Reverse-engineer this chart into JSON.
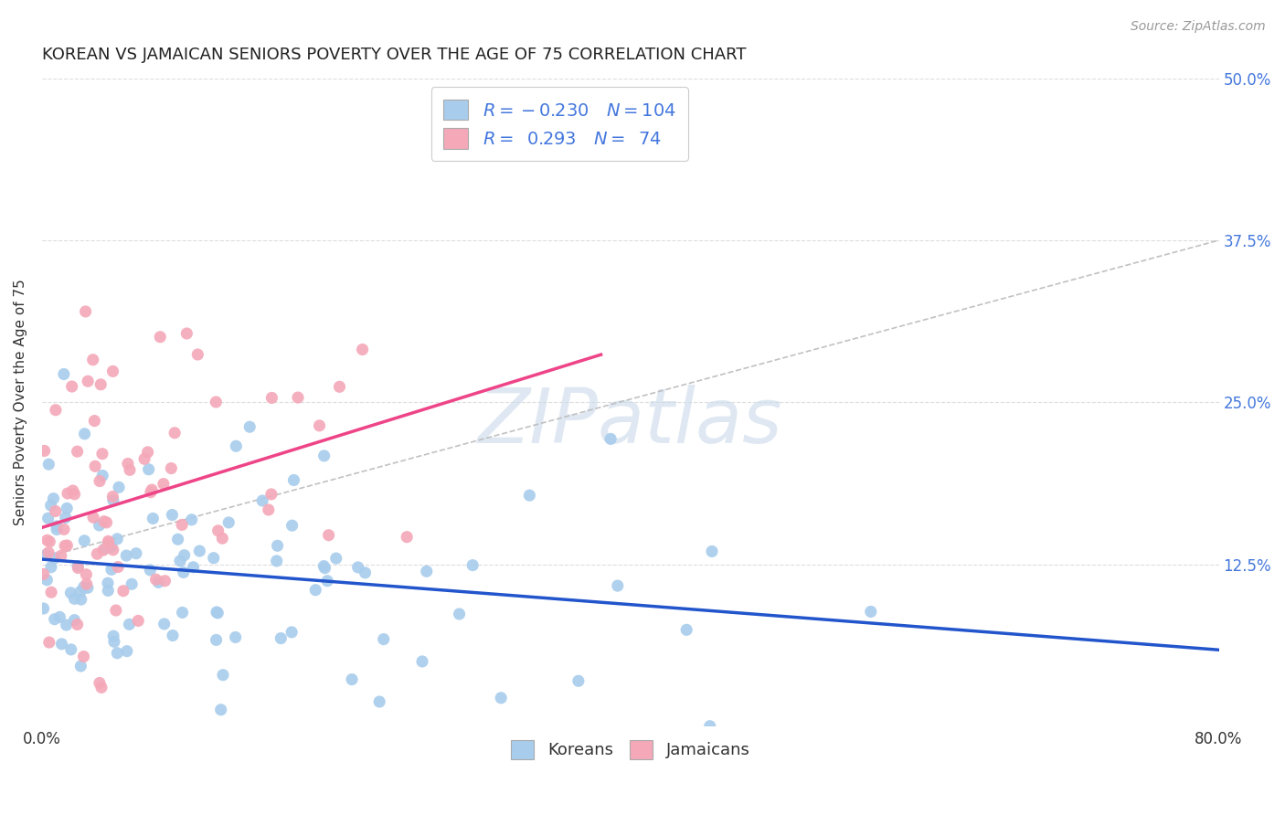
{
  "title": "KOREAN VS JAMAICAN SENIORS POVERTY OVER THE AGE OF 75 CORRELATION CHART",
  "source": "Source: ZipAtlas.com",
  "ylabel": "Seniors Poverty Over the Age of 75",
  "xlim": [
    0.0,
    0.8
  ],
  "ylim": [
    0.0,
    0.5
  ],
  "xticks": [
    0.0,
    0.2,
    0.4,
    0.6,
    0.8
  ],
  "xticklabels": [
    "0.0%",
    "",
    "",
    "",
    "80.0%"
  ],
  "ytick_positions": [
    0.0,
    0.125,
    0.25,
    0.375,
    0.5
  ],
  "ytick_labels_right": [
    "",
    "12.5%",
    "25.0%",
    "37.5%",
    "50.0%"
  ],
  "korean_R": -0.23,
  "korean_N": 104,
  "jamaican_R": 0.293,
  "jamaican_N": 74,
  "korean_color": "#A8CCEC",
  "jamaican_color": "#F4A8B8",
  "korean_line_color": "#2255CC",
  "jamaican_line_color": "#EE4488",
  "background_color": "#ffffff",
  "grid_color": "#dddddd",
  "title_fontsize": 13,
  "axis_label_fontsize": 11,
  "tick_fontsize": 12,
  "legend_fontsize": 14
}
